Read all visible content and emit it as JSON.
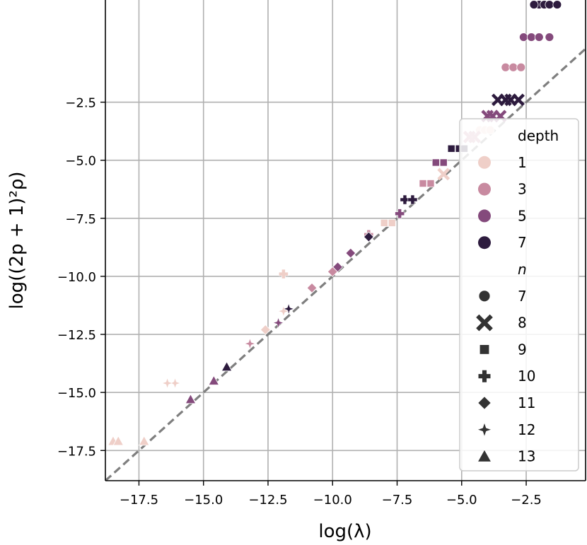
{
  "chart_data": {
    "type": "scatter",
    "title": "",
    "xlabel": "log(λ)",
    "ylabel": "log((2p + 1)²ρ)",
    "xlim": [
      -18.8,
      -0.2
    ],
    "ylim": [
      -18.8,
      1.9
    ],
    "xticks": [
      -17.5,
      -15.0,
      -12.5,
      -10.0,
      -7.5,
      -5.0,
      -2.5
    ],
    "yticks": [
      -17.5,
      -15.0,
      -12.5,
      -10.0,
      -7.5,
      -5.0,
      -2.5
    ],
    "xtick_labels": [
      "−17.5",
      "−15.0",
      "−12.5",
      "−10.0",
      "−7.5",
      "−5.0",
      "−2.5"
    ],
    "ytick_labels": [
      "−17.5",
      "−15.0",
      "−12.5",
      "−10.0",
      "−7.5",
      "−5.0",
      "−2.5"
    ],
    "grid": true,
    "reference_line": {
      "style": "dashed",
      "color": "#7f7f7f",
      "from": [
        -18.8,
        -18.8
      ],
      "to": [
        -0.2,
        -0.2
      ]
    },
    "legend": {
      "placement": "right",
      "hue_title": "depth",
      "hue_entries": [
        {
          "label": "1",
          "color": "#efcfc8"
        },
        {
          "label": "3",
          "color": "#c88aa0"
        },
        {
          "label": "5",
          "color": "#844a7c"
        },
        {
          "label": "7",
          "color": "#2d1b3e"
        }
      ],
      "style_title": "n",
      "style_entries": [
        {
          "label": "7",
          "marker": "circle"
        },
        {
          "label": "8",
          "marker": "x"
        },
        {
          "label": "9",
          "marker": "square"
        },
        {
          "label": "10",
          "marker": "plus"
        },
        {
          "label": "11",
          "marker": "diamond"
        },
        {
          "label": "12",
          "marker": "star4"
        },
        {
          "label": "13",
          "marker": "triangle"
        }
      ]
    },
    "series": [
      {
        "n": "7",
        "marker": "circle",
        "points": [
          {
            "x": -2.0,
            "y": 1.7,
            "depth": "7"
          },
          {
            "x": -1.8,
            "y": 1.7,
            "depth": "7"
          },
          {
            "x": -1.6,
            "y": 1.7,
            "depth": "7"
          },
          {
            "x": -1.3,
            "y": 1.7,
            "depth": "7"
          },
          {
            "x": -2.2,
            "y": 1.7,
            "depth": "7"
          },
          {
            "x": -2.6,
            "y": 0.3,
            "depth": "5"
          },
          {
            "x": -2.3,
            "y": 0.3,
            "depth": "5"
          },
          {
            "x": -2.0,
            "y": 0.3,
            "depth": "5"
          },
          {
            "x": -1.6,
            "y": 0.3,
            "depth": "5"
          },
          {
            "x": -3.3,
            "y": -1.0,
            "depth": "3"
          },
          {
            "x": -3.0,
            "y": -1.0,
            "depth": "3"
          },
          {
            "x": -2.7,
            "y": -1.0,
            "depth": "3"
          },
          {
            "x": -4.3,
            "y": -3.7,
            "depth": "1"
          },
          {
            "x": -4.1,
            "y": -3.7,
            "depth": "1"
          },
          {
            "x": -3.9,
            "y": -3.7,
            "depth": "1"
          }
        ]
      },
      {
        "n": "8",
        "marker": "x",
        "points": [
          {
            "x": -3.6,
            "y": -2.4,
            "depth": "7"
          },
          {
            "x": -3.3,
            "y": -2.4,
            "depth": "7"
          },
          {
            "x": -3.1,
            "y": -2.4,
            "depth": "7"
          },
          {
            "x": -2.8,
            "y": -2.4,
            "depth": "7"
          },
          {
            "x": -4.0,
            "y": -3.1,
            "depth": "5"
          },
          {
            "x": -3.8,
            "y": -3.1,
            "depth": "5"
          },
          {
            "x": -3.5,
            "y": -3.1,
            "depth": "5"
          },
          {
            "x": -4.7,
            "y": -4.0,
            "depth": "3"
          },
          {
            "x": -4.5,
            "y": -4.0,
            "depth": "3"
          },
          {
            "x": -5.7,
            "y": -5.6,
            "depth": "1"
          }
        ]
      },
      {
        "n": "9",
        "marker": "square",
        "points": [
          {
            "x": -5.4,
            "y": -4.5,
            "depth": "7"
          },
          {
            "x": -5.1,
            "y": -4.5,
            "depth": "7"
          },
          {
            "x": -4.9,
            "y": -4.5,
            "depth": "7"
          },
          {
            "x": -6.0,
            "y": -5.1,
            "depth": "5"
          },
          {
            "x": -5.7,
            "y": -5.1,
            "depth": "5"
          },
          {
            "x": -6.5,
            "y": -6.0,
            "depth": "3"
          },
          {
            "x": -6.2,
            "y": -6.0,
            "depth": "3"
          },
          {
            "x": -8.0,
            "y": -7.7,
            "depth": "1"
          },
          {
            "x": -7.7,
            "y": -7.7,
            "depth": "1"
          }
        ]
      },
      {
        "n": "10",
        "marker": "plus",
        "points": [
          {
            "x": -7.2,
            "y": -6.7,
            "depth": "7"
          },
          {
            "x": -6.9,
            "y": -6.7,
            "depth": "7"
          },
          {
            "x": -7.4,
            "y": -7.3,
            "depth": "5"
          },
          {
            "x": -8.6,
            "y": -8.2,
            "depth": "3"
          },
          {
            "x": -11.9,
            "y": -9.9,
            "depth": "1"
          }
        ]
      },
      {
        "n": "11",
        "marker": "diamond",
        "points": [
          {
            "x": -8.6,
            "y": -8.3,
            "depth": "7"
          },
          {
            "x": -9.3,
            "y": -9.0,
            "depth": "5"
          },
          {
            "x": -9.8,
            "y": -9.6,
            "depth": "5"
          },
          {
            "x": -10.0,
            "y": -9.8,
            "depth": "3"
          },
          {
            "x": -10.8,
            "y": -10.5,
            "depth": "3"
          },
          {
            "x": -12.6,
            "y": -12.3,
            "depth": "1"
          }
        ]
      },
      {
        "n": "12",
        "marker": "star4",
        "points": [
          {
            "x": -11.7,
            "y": -11.4,
            "depth": "7"
          },
          {
            "x": -12.1,
            "y": -12.0,
            "depth": "5"
          },
          {
            "x": -13.2,
            "y": -12.9,
            "depth": "3"
          },
          {
            "x": -11.9,
            "y": -11.5,
            "depth": "1"
          },
          {
            "x": -16.1,
            "y": -14.6,
            "depth": "1"
          },
          {
            "x": -16.4,
            "y": -14.6,
            "depth": "1"
          }
        ]
      },
      {
        "n": "13",
        "marker": "triangle",
        "points": [
          {
            "x": -14.1,
            "y": -13.9,
            "depth": "7"
          },
          {
            "x": -14.6,
            "y": -14.5,
            "depth": "5"
          },
          {
            "x": -15.5,
            "y": -15.3,
            "depth": "5"
          },
          {
            "x": -18.5,
            "y": -17.1,
            "depth": "1"
          },
          {
            "x": -18.3,
            "y": -17.1,
            "depth": "1"
          },
          {
            "x": -17.3,
            "y": -17.1,
            "depth": "1"
          }
        ]
      }
    ]
  }
}
